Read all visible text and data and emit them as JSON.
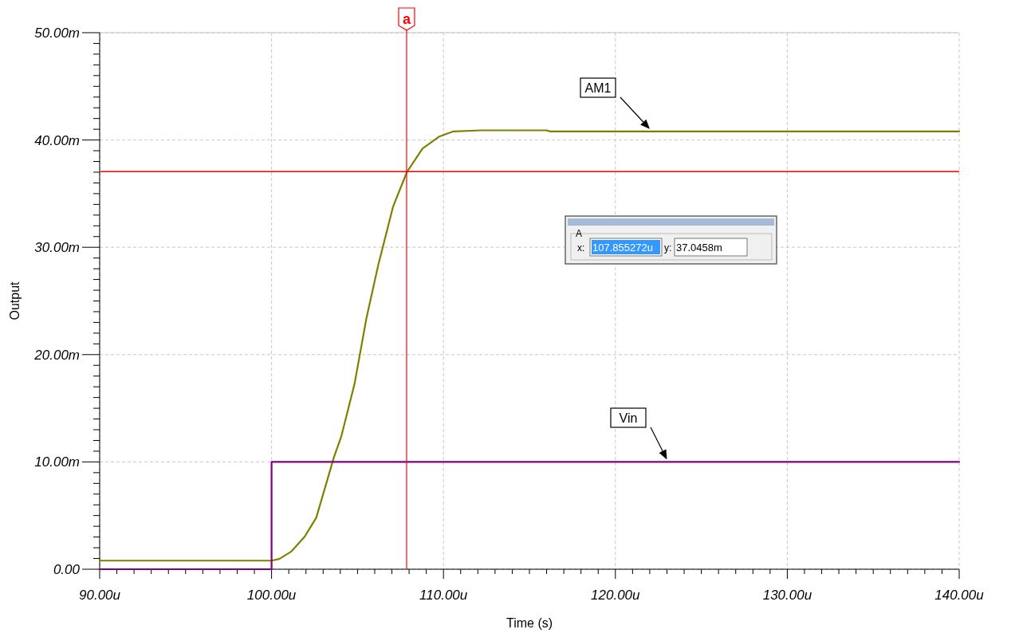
{
  "chart_data": {
    "type": "line",
    "xlabel": "Time (s)",
    "ylabel": "Output",
    "xlim": [
      90,
      140
    ],
    "ylim": [
      0,
      50
    ],
    "xticks": [
      {
        "value": 90,
        "label": "90.00u"
      },
      {
        "value": 91,
        "label": null
      },
      {
        "value": 92,
        "label": null
      },
      {
        "value": 93,
        "label": null
      },
      {
        "value": 94,
        "label": null
      },
      {
        "value": 95,
        "label": null
      },
      {
        "value": 96,
        "label": null
      },
      {
        "value": 97,
        "label": null
      },
      {
        "value": 98,
        "label": null
      },
      {
        "value": 99,
        "label": null
      },
      {
        "value": 100,
        "label": "100.00u"
      },
      {
        "value": 101,
        "label": null
      },
      {
        "value": 102,
        "label": null
      },
      {
        "value": 103,
        "label": null
      },
      {
        "value": 104,
        "label": null
      },
      {
        "value": 105,
        "label": null
      },
      {
        "value": 106,
        "label": null
      },
      {
        "value": 107,
        "label": null
      },
      {
        "value": 108,
        "label": null
      },
      {
        "value": 109,
        "label": null
      },
      {
        "value": 110,
        "label": "110.00u"
      },
      {
        "value": 111,
        "label": null
      },
      {
        "value": 112,
        "label": null
      },
      {
        "value": 113,
        "label": null
      },
      {
        "value": 114,
        "label": null
      },
      {
        "value": 115,
        "label": null
      },
      {
        "value": 116,
        "label": null
      },
      {
        "value": 117,
        "label": null
      },
      {
        "value": 118,
        "label": null
      },
      {
        "value": 119,
        "label": null
      },
      {
        "value": 120,
        "label": "120.00u"
      },
      {
        "value": 121,
        "label": null
      },
      {
        "value": 122,
        "label": null
      },
      {
        "value": 123,
        "label": null
      },
      {
        "value": 124,
        "label": null
      },
      {
        "value": 125,
        "label": null
      },
      {
        "value": 126,
        "label": null
      },
      {
        "value": 127,
        "label": null
      },
      {
        "value": 128,
        "label": null
      },
      {
        "value": 129,
        "label": null
      },
      {
        "value": 130,
        "label": "130.00u"
      },
      {
        "value": 131,
        "label": null
      },
      {
        "value": 132,
        "label": null
      },
      {
        "value": 133,
        "label": null
      },
      {
        "value": 134,
        "label": null
      },
      {
        "value": 135,
        "label": null
      },
      {
        "value": 136,
        "label": null
      },
      {
        "value": 137,
        "label": null
      },
      {
        "value": 138,
        "label": null
      },
      {
        "value": 139,
        "label": null
      },
      {
        "value": 140,
        "label": "140.00u"
      }
    ],
    "yticks": [
      {
        "value": 0,
        "label": "0.00"
      },
      {
        "value": 1,
        "label": null
      },
      {
        "value": 2,
        "label": null
      },
      {
        "value": 3,
        "label": null
      },
      {
        "value": 4,
        "label": null
      },
      {
        "value": 5,
        "label": null
      },
      {
        "value": 6,
        "label": null
      },
      {
        "value": 7,
        "label": null
      },
      {
        "value": 8,
        "label": null
      },
      {
        "value": 9,
        "label": null
      },
      {
        "value": 10,
        "label": "10.00m"
      },
      {
        "value": 11,
        "label": null
      },
      {
        "value": 12,
        "label": null
      },
      {
        "value": 13,
        "label": null
      },
      {
        "value": 14,
        "label": null
      },
      {
        "value": 15,
        "label": null
      },
      {
        "value": 16,
        "label": null
      },
      {
        "value": 17,
        "label": null
      },
      {
        "value": 18,
        "label": null
      },
      {
        "value": 19,
        "label": null
      },
      {
        "value": 20,
        "label": "20.00m"
      },
      {
        "value": 21,
        "label": null
      },
      {
        "value": 22,
        "label": null
      },
      {
        "value": 23,
        "label": null
      },
      {
        "value": 24,
        "label": null
      },
      {
        "value": 25,
        "label": null
      },
      {
        "value": 26,
        "label": null
      },
      {
        "value": 27,
        "label": null
      },
      {
        "value": 28,
        "label": null
      },
      {
        "value": 29,
        "label": null
      },
      {
        "value": 30,
        "label": "30.00m"
      },
      {
        "value": 31,
        "label": null
      },
      {
        "value": 32,
        "label": null
      },
      {
        "value": 33,
        "label": null
      },
      {
        "value": 34,
        "label": null
      },
      {
        "value": 35,
        "label": null
      },
      {
        "value": 36,
        "label": null
      },
      {
        "value": 37,
        "label": null
      },
      {
        "value": 38,
        "label": null
      },
      {
        "value": 39,
        "label": null
      },
      {
        "value": 40,
        "label": "40.00m"
      },
      {
        "value": 41,
        "label": null
      },
      {
        "value": 42,
        "label": null
      },
      {
        "value": 43,
        "label": null
      },
      {
        "value": 44,
        "label": null
      },
      {
        "value": 45,
        "label": null
      },
      {
        "value": 46,
        "label": null
      },
      {
        "value": 47,
        "label": null
      },
      {
        "value": 48,
        "label": null
      },
      {
        "value": 49,
        "label": null
      },
      {
        "value": 50,
        "label": "50.00m"
      }
    ],
    "grid": true,
    "line_style": "solid",
    "series": [
      {
        "name": "AM1",
        "color": "#808000",
        "x": [
          90,
          100,
          100.45,
          101.14,
          101.92,
          102.6,
          103.63,
          104.06,
          104.83,
          105.52,
          106.2,
          107.07,
          107.87,
          108.78,
          109.73,
          110.58,
          112.2,
          116,
          116.2,
          140
        ],
        "values": [
          0.8,
          0.8,
          0.96,
          1.64,
          3.02,
          4.8,
          10.45,
          12.4,
          17.3,
          23.4,
          28.3,
          33.8,
          37.0,
          39.2,
          40.3,
          40.8,
          40.9,
          40.9,
          40.8,
          40.8
        ]
      },
      {
        "name": "Vin",
        "color": "#800080",
        "type": "step",
        "x": [
          90,
          100,
          140
        ],
        "values": [
          0,
          10,
          10
        ]
      }
    ],
    "ref_lines": [
      {
        "axis": "x",
        "value": 107.855272,
        "label": "a",
        "color": "#ff0000"
      },
      {
        "axis": "y",
        "value": 37.0458,
        "color": "#ff0000"
      }
    ],
    "annotations": [
      "A",
      "x:",
      "107.855272u",
      "y:",
      "37.0458m"
    ]
  }
}
